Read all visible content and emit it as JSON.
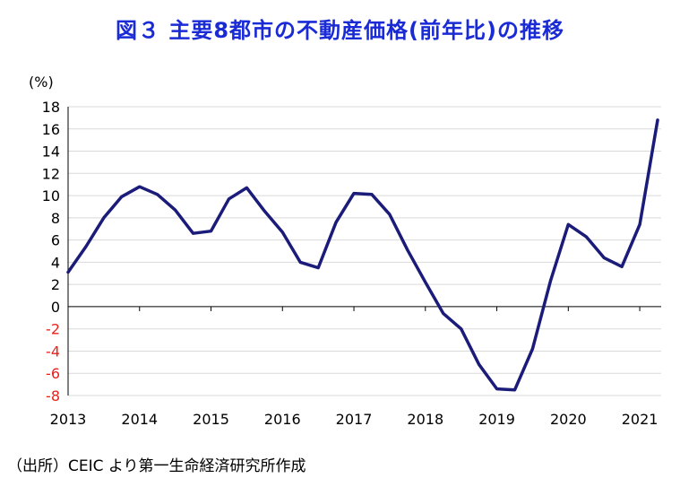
{
  "chart_data": {
    "type": "line",
    "title": "図３ 主要8都市の不動産価格(前年比)の推移",
    "ylabel": "(%)",
    "xlabel": "",
    "ylim": [
      -8,
      18
    ],
    "yticks": [
      -8,
      -6,
      -4,
      -2,
      0,
      2,
      4,
      6,
      8,
      10,
      12,
      14,
      16,
      18
    ],
    "xlim": [
      2013,
      2021.3
    ],
    "xticks": [
      2013,
      2014,
      2015,
      2016,
      2017,
      2018,
      2019,
      2020,
      2021
    ],
    "grid": true,
    "series": [
      {
        "x": [
          2013,
          2013.25,
          2013.5,
          2013.75,
          2014,
          2014.25,
          2014.5,
          2014.75,
          2015,
          2015.25,
          2015.5,
          2015.75,
          2016,
          2016.25,
          2016.5,
          2016.75,
          2017,
          2017.25,
          2017.5,
          2017.75,
          2018,
          2018.25,
          2018.5,
          2018.75,
          2019,
          2019.25,
          2019.5,
          2019.75,
          2020,
          2020.25,
          2020.5,
          2020.75,
          2021,
          2021.25
        ],
        "values": [
          3.1,
          5.4,
          8.0,
          9.9,
          10.8,
          10.1,
          8.7,
          6.6,
          6.8,
          9.7,
          10.7,
          8.6,
          6.7,
          4.0,
          3.5,
          7.6,
          10.2,
          10.1,
          8.3,
          5.1,
          2.2,
          -0.6,
          -2.0,
          -5.2,
          -7.4,
          -7.5,
          -3.8,
          2.3,
          7.4,
          6.3,
          4.4,
          3.6,
          7.4,
          16.8
        ],
        "color": "#1b1b7a"
      }
    ],
    "positive_tick_color": "#000000",
    "negative_tick_color": "#e8221b",
    "title_color": "#1a2bd6"
  },
  "source": "（出所）CEIC より第一生命経済研究所作成"
}
